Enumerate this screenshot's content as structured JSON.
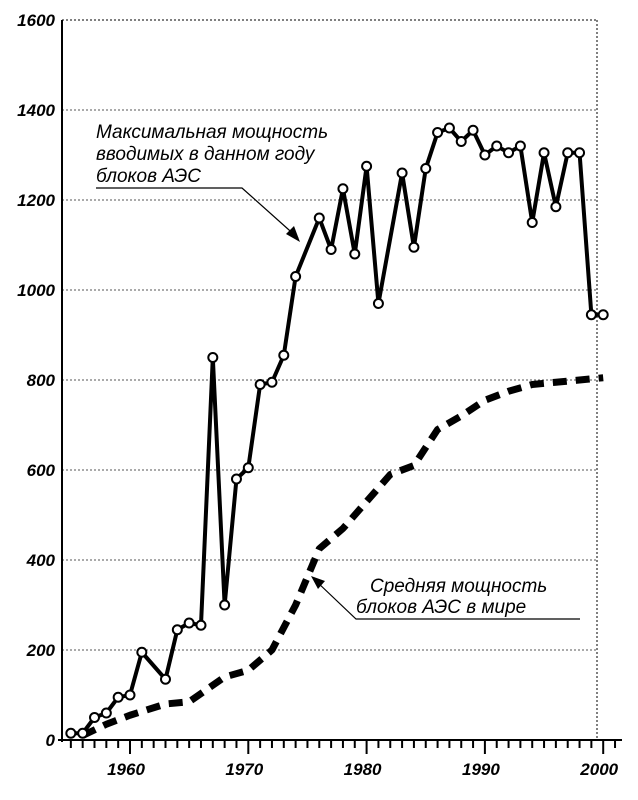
{
  "chart_data": {
    "type": "line",
    "title": "",
    "xlabel": "",
    "ylabel": "",
    "xlim": [
      1954,
      2001.5
    ],
    "ylim": [
      0,
      1600
    ],
    "x_ticks": [
      1960,
      1970,
      1980,
      1990,
      2000
    ],
    "y_ticks": [
      0,
      200,
      400,
      600,
      800,
      1000,
      1200,
      1400,
      1600
    ],
    "grid": "horizontal dotted",
    "colors": {
      "line": "#000000",
      "background": "#ffffff"
    },
    "series": [
      {
        "style": "solid with circle markers",
        "x": [
          1955,
          1956,
          1957,
          1958,
          1959,
          1960,
          1961,
          1963,
          1964,
          1965,
          1966,
          1967,
          1968,
          1969,
          1970,
          1971,
          1972,
          1973,
          1974,
          1976,
          1977,
          1978,
          1979,
          1980,
          1981,
          1983,
          1984,
          1985,
          1986,
          1987,
          1988,
          1989,
          1990,
          1991,
          1992,
          1993,
          1994,
          1995,
          1996,
          1997,
          1998,
          1999,
          2000
        ],
        "values": [
          15,
          15,
          50,
          60,
          95,
          100,
          195,
          135,
          245,
          260,
          255,
          850,
          300,
          580,
          605,
          790,
          795,
          855,
          1030,
          1160,
          1090,
          1225,
          1080,
          1275,
          970,
          1260,
          1095,
          1270,
          1350,
          1360,
          1330,
          1355,
          1300,
          1320,
          1305,
          1320,
          1150,
          1305,
          1185,
          1305,
          1305,
          945,
          945
        ]
      },
      {
        "style": "dashed",
        "x": [
          1956,
          1958,
          1960,
          1963,
          1965,
          1968,
          1970,
          1972,
          1974,
          1976,
          1978,
          1980,
          1982,
          1984,
          1986,
          1988,
          1990,
          1992,
          1994,
          1996,
          1998,
          2000
        ],
        "values": [
          10,
          35,
          55,
          80,
          85,
          140,
          155,
          200,
          300,
          425,
          470,
          530,
          590,
          610,
          690,
          720,
          755,
          775,
          790,
          795,
          800,
          805
        ]
      }
    ],
    "annotations": [
      {
        "lines": [
          "Максимальная мощность",
          "вводимых в данном году",
          "блоков АЭС"
        ],
        "points_to": "solid series"
      },
      {
        "lines": [
          "Средняя мощность",
          "блоков АЭС в мире"
        ],
        "points_to": "dashed series"
      }
    ]
  }
}
